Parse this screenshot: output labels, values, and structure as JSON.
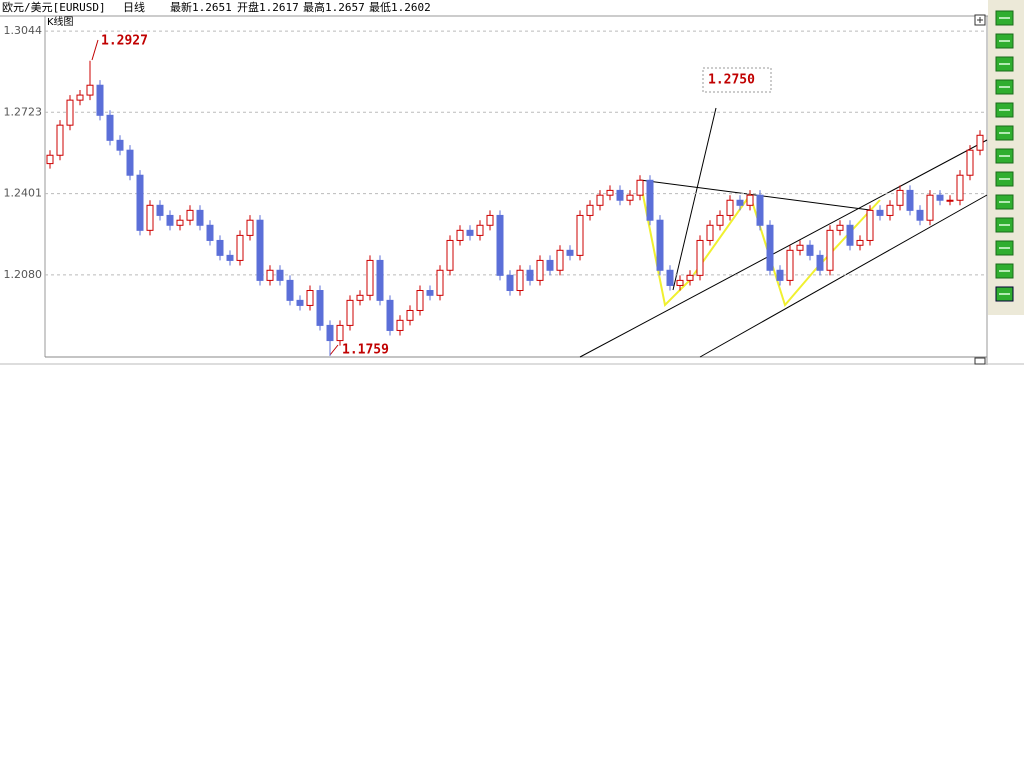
{
  "header": {
    "symbol": "欧元/美元[EURUSD]",
    "period": "日线",
    "last": "最新1.2651",
    "open": "开盘1.2617",
    "high": "最高1.2657",
    "low": "最低1.2602"
  },
  "panel_label": "K线图",
  "chart_data": {
    "type": "candlestick",
    "ylim": [
      1.1755,
      1.3088
    ],
    "yticks": [
      1.3044,
      1.2723,
      1.2401,
      {
        "value": 1.208,
        "label": "1.2080"
      }
    ],
    "grid": true,
    "up_color": "#cc0000",
    "down_color": "#5b6fd8",
    "annotations": [
      "1.2927",
      "1.1759",
      "1.2750"
    ],
    "open": [
      1.252,
      1.2553,
      1.2672,
      1.2771,
      1.2791,
      1.283,
      1.2711,
      1.2612,
      1.2573,
      1.2474,
      1.2256,
      1.2355,
      1.2315,
      1.2276,
      1.2296,
      1.2335,
      1.2276,
      1.2216,
      1.2157,
      1.2137,
      1.2236,
      1.2296,
      1.2058,
      1.2098,
      1.2058,
      1.1979,
      1.1959,
      1.2018,
      1.188,
      1.182,
      1.188,
      1.1979,
      1.1999,
      1.2137,
      1.1979,
      1.186,
      1.19,
      1.1939,
      1.2018,
      1.1999,
      1.2098,
      1.2216,
      1.2256,
      1.2236,
      1.2276,
      1.2315,
      1.2078,
      1.2018,
      1.2098,
      1.2058,
      1.2137,
      1.2098,
      1.2177,
      1.2157,
      1.2315,
      1.2355,
      1.2395,
      1.2414,
      1.2375,
      1.2395,
      1.2454,
      1.2296,
      1.2098,
      1.2038,
      1.2058,
      1.2078,
      1.2216,
      1.2276,
      1.2315,
      1.2375,
      1.2355,
      1.2395,
      1.2276,
      1.2098,
      1.2058,
      1.2177,
      1.2197,
      1.2157,
      1.2098,
      1.2256,
      1.2276,
      1.2197,
      1.2216,
      1.2335,
      1.2315,
      1.2355,
      1.2414,
      1.2335,
      1.2296,
      1.2395,
      1.2375,
      1.2375,
      1.2474,
      1.2573
    ],
    "high": [
      1.2573,
      1.2692,
      1.2791,
      1.2811,
      1.2927,
      1.285,
      1.2731,
      1.2632,
      1.2593,
      1.2494,
      1.2375,
      1.2375,
      1.2335,
      1.2316,
      1.2355,
      1.2355,
      1.2296,
      1.2236,
      1.2177,
      1.2256,
      1.2316,
      1.2316,
      1.2118,
      1.2118,
      1.2078,
      1.1999,
      1.2038,
      1.2038,
      1.19,
      1.19,
      1.1999,
      1.2019,
      1.2157,
      1.2157,
      1.1999,
      1.192,
      1.1959,
      1.2038,
      1.2038,
      1.2118,
      1.2236,
      1.2276,
      1.2276,
      1.2296,
      1.2335,
      1.2335,
      1.2098,
      1.2118,
      1.2118,
      1.2157,
      1.2157,
      1.2197,
      1.2197,
      1.2335,
      1.2375,
      1.2415,
      1.2434,
      1.2434,
      1.2415,
      1.2474,
      1.2474,
      1.2316,
      1.2118,
      1.2078,
      1.2098,
      1.2236,
      1.2296,
      1.2335,
      1.2395,
      1.2395,
      1.2415,
      1.2415,
      1.2296,
      1.2118,
      1.2197,
      1.2217,
      1.2217,
      1.2177,
      1.2276,
      1.2296,
      1.2296,
      1.2236,
      1.2355,
      1.2355,
      1.2375,
      1.2434,
      1.2434,
      1.2355,
      1.2415,
      1.2415,
      1.2395,
      1.2494,
      1.2593,
      1.2652
    ],
    "low": [
      1.25,
      1.2533,
      1.2652,
      1.2751,
      1.2771,
      1.2691,
      1.2592,
      1.2553,
      1.2454,
      1.2236,
      1.2236,
      1.2295,
      1.2256,
      1.2256,
      1.2276,
      1.2256,
      1.2196,
      1.2137,
      1.2117,
      1.2117,
      1.2216,
      1.2038,
      1.2038,
      1.2038,
      1.1959,
      1.1939,
      1.1939,
      1.186,
      1.1759,
      1.18,
      1.186,
      1.1959,
      1.1979,
      1.1959,
      1.184,
      1.184,
      1.188,
      1.1919,
      1.1979,
      1.1979,
      1.2078,
      1.2196,
      1.2216,
      1.2216,
      1.2256,
      1.2058,
      1.1998,
      1.1998,
      1.2038,
      1.2038,
      1.2078,
      1.2078,
      1.2137,
      1.2137,
      1.2295,
      1.2335,
      1.2375,
      1.2355,
      1.2355,
      1.2375,
      1.2276,
      1.2078,
      1.2018,
      1.2018,
      1.2038,
      1.2058,
      1.2196,
      1.2256,
      1.2295,
      1.2335,
      1.2335,
      1.2256,
      1.2078,
      1.2038,
      1.2038,
      1.2157,
      1.2137,
      1.2078,
      1.2078,
      1.2236,
      1.2177,
      1.2177,
      1.2196,
      1.2295,
      1.2295,
      1.2335,
      1.2315,
      1.2276,
      1.2276,
      1.2355,
      1.2355,
      1.2355,
      1.2454,
      1.2553
    ],
    "close": [
      1.2553,
      1.2672,
      1.2771,
      1.2791,
      1.283,
      1.2711,
      1.2612,
      1.2573,
      1.2474,
      1.2256,
      1.2355,
      1.2315,
      1.2276,
      1.2296,
      1.2335,
      1.2276,
      1.2216,
      1.2157,
      1.2137,
      1.2236,
      1.2296,
      1.2058,
      1.2098,
      1.2058,
      1.1979,
      1.1959,
      1.2018,
      1.188,
      1.182,
      1.188,
      1.1979,
      1.1999,
      1.2137,
      1.1979,
      1.186,
      1.19,
      1.1939,
      1.2018,
      1.1999,
      1.2098,
      1.2216,
      1.2256,
      1.2236,
      1.2276,
      1.2315,
      1.2078,
      1.2018,
      1.2098,
      1.2058,
      1.2137,
      1.2098,
      1.2177,
      1.2157,
      1.2315,
      1.2355,
      1.2395,
      1.2414,
      1.2375,
      1.2395,
      1.2454,
      1.2296,
      1.2098,
      1.2038,
      1.2058,
      1.2078,
      1.2216,
      1.2276,
      1.2315,
      1.2375,
      1.2355,
      1.2395,
      1.2276,
      1.2098,
      1.2058,
      1.2177,
      1.2197,
      1.2157,
      1.2098,
      1.2256,
      1.2276,
      1.2197,
      1.2216,
      1.2335,
      1.2315,
      1.2355,
      1.2414,
      1.2335,
      1.2296,
      1.2395,
      1.2375,
      1.2375,
      1.2474,
      1.2573,
      1.2632
    ]
  }
}
